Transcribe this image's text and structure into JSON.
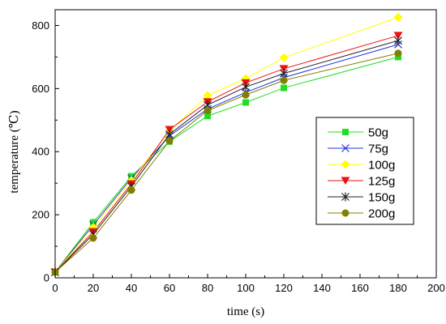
{
  "chart_data": {
    "type": "line",
    "xlabel": "time (s)",
    "ylabel": "temperature (℃)",
    "xlim": [
      0,
      200
    ],
    "ylim": [
      0,
      850
    ],
    "xticks": [
      0,
      20,
      40,
      60,
      80,
      100,
      120,
      140,
      160,
      180,
      200
    ],
    "yticks": [
      0,
      200,
      400,
      600,
      800
    ],
    "grid": false,
    "legend_position": "center-right",
    "x": [
      0,
      20,
      40,
      60,
      80,
      100,
      120,
      180
    ],
    "series": [
      {
        "name": "50g",
        "color": "#22dd22",
        "marker": "square",
        "values": [
          18,
          176,
          322,
          432,
          513,
          556,
          602,
          700
        ]
      },
      {
        "name": "75g",
        "color": "#2233dd",
        "marker": "x",
        "values": [
          18,
          168,
          316,
          450,
          535,
          588,
          635,
          740
        ]
      },
      {
        "name": "100g",
        "color": "#ffff00",
        "marker": "diamond",
        "values": [
          18,
          160,
          308,
          466,
          578,
          632,
          698,
          826
        ]
      },
      {
        "name": "125g",
        "color": "#ee1111",
        "marker": "triangle-down",
        "values": [
          18,
          146,
          298,
          470,
          558,
          618,
          663,
          768
        ]
      },
      {
        "name": "150g",
        "color": "#222222",
        "marker": "asterisk",
        "values": [
          18,
          138,
          290,
          455,
          548,
          605,
          648,
          752
        ]
      },
      {
        "name": "200g",
        "color": "#808000",
        "marker": "circle",
        "values": [
          18,
          126,
          278,
          434,
          530,
          580,
          626,
          712
        ]
      }
    ]
  }
}
